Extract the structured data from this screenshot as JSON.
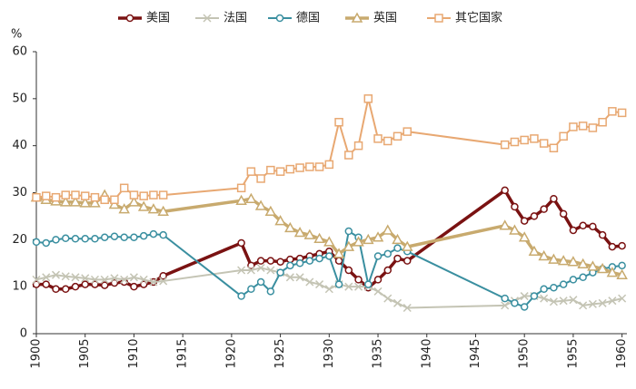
{
  "chart_data": {
    "type": "line",
    "y_label": "%",
    "x": [
      1900,
      1901,
      1902,
      1903,
      1904,
      1905,
      1906,
      1907,
      1908,
      1909,
      1910,
      1911,
      1912,
      1913,
      1921,
      1922,
      1923,
      1924,
      1925,
      1926,
      1927,
      1928,
      1929,
      1930,
      1931,
      1932,
      1933,
      1934,
      1935,
      1936,
      1937,
      1938,
      1948,
      1949,
      1950,
      1951,
      1952,
      1953,
      1954,
      1955,
      1956,
      1957,
      1958,
      1959,
      1960
    ],
    "series": [
      {
        "name": "美国",
        "color": "#7a1212",
        "marker": "circle",
        "line_width": 3.5,
        "values": [
          10.5,
          10.5,
          9.5,
          9.5,
          10,
          10.5,
          10.5,
          10.3,
          10.8,
          11,
          10,
          10.5,
          11,
          12.3,
          19.3,
          14.5,
          15.5,
          15.5,
          15.3,
          15.8,
          16,
          16.5,
          17,
          17.5,
          15.5,
          13.5,
          11.5,
          9.8,
          11.5,
          13.5,
          16,
          15.5,
          30.5,
          27,
          24,
          25,
          26.5,
          28.7,
          25.5,
          22,
          23,
          22.8,
          21,
          18.5,
          18.7
        ]
      },
      {
        "name": "法国",
        "color": "#c4c4b4",
        "marker": "x",
        "line_width": 2,
        "values": [
          11.5,
          12,
          12.5,
          12.2,
          12,
          11.8,
          11.5,
          11.5,
          11.8,
          11.5,
          12,
          11.5,
          11,
          11.2,
          13.5,
          13.5,
          14,
          13.5,
          13,
          12,
          12,
          11,
          10.5,
          9.5,
          10.5,
          10,
          10,
          10,
          9,
          7.5,
          6.5,
          5.5,
          6,
          7,
          8,
          8,
          7.5,
          6.8,
          7,
          7.2,
          6,
          6.3,
          6.5,
          7,
          7.5
        ]
      },
      {
        "name": "德国",
        "color": "#3a8fa0",
        "marker": "circle",
        "line_width": 2,
        "values": [
          19.5,
          19.3,
          20,
          20.3,
          20.2,
          20.2,
          20.2,
          20.5,
          20.7,
          20.5,
          20.5,
          20.8,
          21.2,
          21,
          8,
          9.5,
          11,
          9,
          13,
          14.5,
          15,
          15.5,
          16,
          16.5,
          10.5,
          21.8,
          20.5,
          10.5,
          16.5,
          17,
          18.2,
          17.5,
          7.5,
          6.5,
          5.7,
          8,
          9.5,
          9.8,
          10.5,
          11.5,
          12,
          13,
          13.8,
          14.2,
          14.5
        ]
      },
      {
        "name": "英国",
        "color": "#c8aa6e",
        "marker": "triangle",
        "line_width": 3.5,
        "values": [
          29,
          28.5,
          28.2,
          28,
          28,
          27.8,
          27.8,
          29.5,
          27.5,
          26.5,
          28,
          27,
          26.5,
          26,
          28.3,
          28.7,
          27.2,
          26,
          24,
          22.5,
          21.5,
          21,
          20.2,
          19.5,
          17,
          18.5,
          19.5,
          20,
          20.5,
          22,
          20,
          18.5,
          23,
          22,
          20.5,
          17.5,
          16.5,
          15.8,
          15.5,
          15.3,
          14.8,
          14.3,
          13.8,
          13,
          12.5
        ]
      },
      {
        "name": "其它国家",
        "color": "#e8a872",
        "marker": "square",
        "line_width": 2,
        "values": [
          29,
          29.3,
          29,
          29.5,
          29.5,
          29.3,
          29,
          28.5,
          28.5,
          31,
          29.5,
          29.3,
          29.5,
          29.5,
          31,
          34.5,
          33,
          34.8,
          34.5,
          35,
          35.3,
          35.5,
          35.5,
          36,
          45,
          38,
          40,
          50,
          41.5,
          41,
          42,
          43,
          40.2,
          40.8,
          41.2,
          41.5,
          40.5,
          39.5,
          42,
          44,
          44.2,
          43.8,
          45,
          47.3,
          47
        ]
      }
    ],
    "xlim": [
      1900,
      1960.5
    ],
    "xticks": [
      1900,
      1905,
      1910,
      1915,
      1920,
      1925,
      1930,
      1935,
      1940,
      1945,
      1950,
      1955,
      1960
    ],
    "ylim": [
      0,
      60
    ],
    "yticks": [
      0,
      10,
      20,
      30,
      40,
      50,
      60
    ],
    "grid": false,
    "legend": "top"
  }
}
